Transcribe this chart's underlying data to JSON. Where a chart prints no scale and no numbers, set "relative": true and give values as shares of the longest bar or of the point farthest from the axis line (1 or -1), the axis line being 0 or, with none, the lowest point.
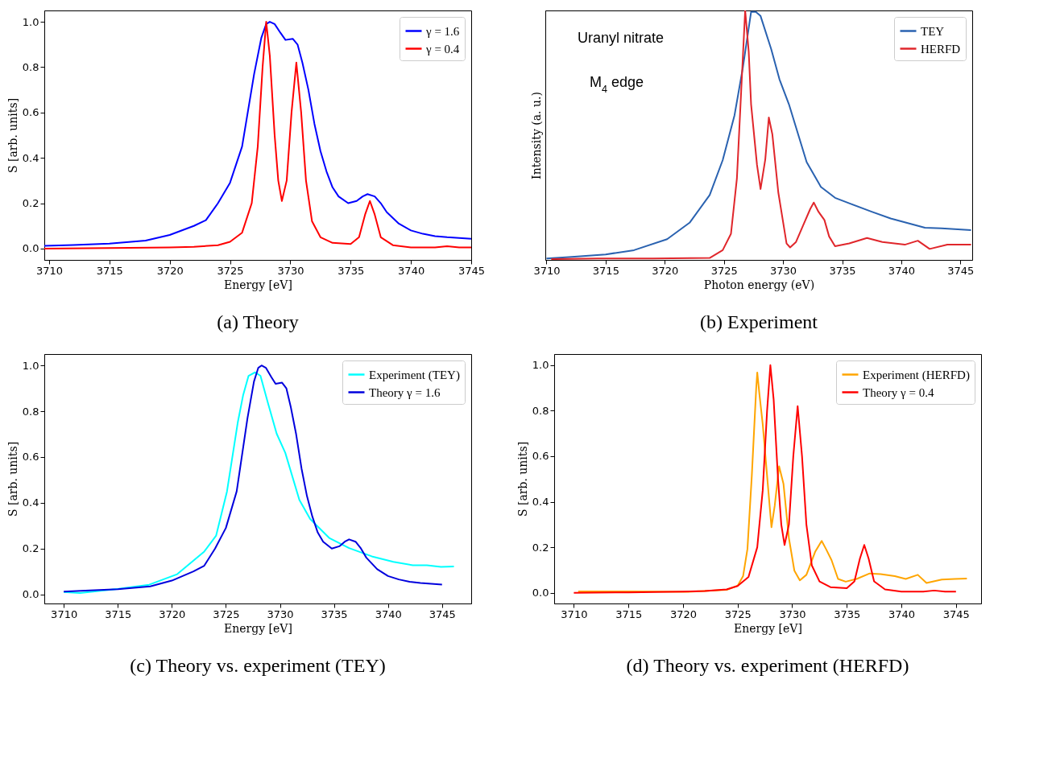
{
  "chart_data": [
    {
      "type": "line",
      "title": "(a) Theory",
      "xlabel": "Energy [eV]",
      "ylabel": "S [arb. units]",
      "xlim": [
        3709.6,
        3745
      ],
      "ylim": [
        -0.05,
        1.05
      ],
      "xticks": [
        3710,
        3715,
        3720,
        3725,
        3730,
        3735,
        3740,
        3745
      ],
      "yticks": [
        {
          "value": 0,
          "label": "0.0"
        },
        {
          "value": 0.2,
          "label": "0.2"
        },
        {
          "value": 0.4,
          "label": "0.4"
        },
        {
          "value": 0.6,
          "label": "0.6"
        },
        {
          "value": 0.8,
          "label": "0.8"
        },
        {
          "value": 1,
          "label": "1.0"
        }
      ],
      "legend": "top right",
      "series": [
        {
          "name": "γ = 1.6",
          "color": "#0000ff",
          "x": [
            3709.6,
            3712,
            3715,
            3718,
            3720,
            3722,
            3723,
            3724,
            3725,
            3726,
            3727,
            3727.6,
            3728,
            3728.3,
            3728.7,
            3729.2,
            3729.6,
            3730.2,
            3730.6,
            3731,
            3731.5,
            3732,
            3732.5,
            3733,
            3733.5,
            3734,
            3734.8,
            3735.5,
            3736,
            3736.4,
            3737,
            3737.5,
            3738,
            3739,
            3740,
            3741,
            3742,
            3743,
            3745
          ],
          "values": [
            0.012,
            0.016,
            0.022,
            0.035,
            0.06,
            0.1,
            0.125,
            0.2,
            0.29,
            0.45,
            0.77,
            0.93,
            0.99,
            1.0,
            0.99,
            0.95,
            0.92,
            0.925,
            0.9,
            0.82,
            0.7,
            0.55,
            0.43,
            0.34,
            0.27,
            0.23,
            0.2,
            0.21,
            0.23,
            0.24,
            0.23,
            0.2,
            0.16,
            0.11,
            0.08,
            0.065,
            0.055,
            0.05,
            0.043
          ]
        },
        {
          "name": "γ = 0.4",
          "color": "#ff0000",
          "x": [
            3709.6,
            3715,
            3720,
            3722,
            3724,
            3725,
            3726,
            3726.8,
            3727.3,
            3727.7,
            3728,
            3728.3,
            3728.7,
            3729,
            3729.3,
            3729.7,
            3730.1,
            3730.5,
            3730.9,
            3731.3,
            3731.8,
            3732.5,
            3733.5,
            3735,
            3735.7,
            3736.2,
            3736.6,
            3737,
            3737.5,
            3738.5,
            3740,
            3742,
            3743,
            3744,
            3745
          ],
          "values": [
            0,
            0.002,
            0.005,
            0.008,
            0.015,
            0.03,
            0.07,
            0.2,
            0.45,
            0.8,
            1.0,
            0.85,
            0.5,
            0.3,
            0.21,
            0.3,
            0.6,
            0.82,
            0.6,
            0.3,
            0.12,
            0.05,
            0.025,
            0.02,
            0.05,
            0.15,
            0.21,
            0.15,
            0.05,
            0.015,
            0.005,
            0.005,
            0.01,
            0.005,
            0.005
          ]
        }
      ]
    },
    {
      "type": "line",
      "title": "(b) Experiment",
      "xlabel": "Photon energy (eV)",
      "ylabel": "Intensity (a. u.)",
      "relative": true,
      "xlim": [
        3709.9,
        3746
      ],
      "xticks": [
        3710,
        3715,
        3720,
        3725,
        3730,
        3735,
        3740,
        3745
      ],
      "legend": "top right",
      "annotations": [
        "Uranyl nitrate",
        "M$_{4}$ edge"
      ],
      "series": [
        {
          "name": "TEY",
          "color": "#2a62b0",
          "x": [
            3710,
            3711.9,
            3715,
            3717.4,
            3720.2,
            3722.1,
            3723.8,
            3724.9,
            3725.9,
            3726.6,
            3727.3,
            3727.7,
            3728.1,
            3729,
            3729.7,
            3730.5,
            3732,
            3733.2,
            3734.4,
            3735.6,
            3737.5,
            3739.1,
            3742,
            3743.4,
            3745.9
          ],
          "values": [
            0.006,
            0.011,
            0.022,
            0.039,
            0.083,
            0.149,
            0.26,
            0.4,
            0.58,
            0.77,
            0.994,
            0.994,
            0.978,
            0.845,
            0.724,
            0.624,
            0.392,
            0.293,
            0.249,
            0.227,
            0.193,
            0.166,
            0.129,
            0.127,
            0.119
          ]
        },
        {
          "name": "HERFD",
          "color": "#e0262b",
          "x": [
            3710.4,
            3714.3,
            3719,
            3723.8,
            3724.9,
            3725.6,
            3726.1,
            3726.5,
            3726.8,
            3727.1,
            3727.3,
            3727.8,
            3728.1,
            3728.5,
            3728.8,
            3729.1,
            3729.6,
            3730.3,
            3730.6,
            3731.1,
            3731.7,
            3732.3,
            3732.6,
            3733,
            3733.5,
            3733.9,
            3734.4,
            3735.6,
            3737.1,
            3738.4,
            3740.3,
            3741.4,
            3742.4,
            3743.9,
            3745.9
          ],
          "values": [
            0.003,
            0.006,
            0.006,
            0.008,
            0.039,
            0.105,
            0.326,
            0.713,
            1.0,
            0.834,
            0.624,
            0.381,
            0.284,
            0.403,
            0.571,
            0.503,
            0.271,
            0.066,
            0.05,
            0.072,
            0.138,
            0.204,
            0.23,
            0.193,
            0.16,
            0.094,
            0.055,
            0.066,
            0.088,
            0.072,
            0.061,
            0.077,
            0.044,
            0.061,
            0.061
          ]
        }
      ]
    },
    {
      "type": "line",
      "title": "(c) Theory vs. experiment (TEY)",
      "xlabel": "Energy [eV]",
      "ylabel": "S [arb. units]",
      "xlim": [
        3708.2,
        3747.7
      ],
      "ylim": [
        -0.04,
        1.05
      ],
      "xticks": [
        3710,
        3715,
        3720,
        3725,
        3730,
        3735,
        3740,
        3745
      ],
      "yticks": [
        {
          "value": 0,
          "label": "0.0"
        },
        {
          "value": 0.2,
          "label": "0.2"
        },
        {
          "value": 0.4,
          "label": "0.4"
        },
        {
          "value": 0.6,
          "label": "0.6"
        },
        {
          "value": 0.8,
          "label": "0.8"
        },
        {
          "value": 1,
          "label": "1.0"
        }
      ],
      "legend": "top right",
      "series": [
        {
          "name": "Experiment (TEY)",
          "color": "#00ffff",
          "x": [
            3710,
            3711.5,
            3715.1,
            3717.9,
            3720.5,
            3723,
            3724.1,
            3725.1,
            3726.1,
            3726.6,
            3727.1,
            3727.7,
            3728.2,
            3728.9,
            3729.7,
            3730.5,
            3731.8,
            3732.8,
            3734.6,
            3736.4,
            3738.5,
            3740.5,
            3742.3,
            3743.6,
            3744.9,
            3746.1
          ],
          "values": [
            0.01,
            0.006,
            0.024,
            0.042,
            0.088,
            0.187,
            0.257,
            0.449,
            0.751,
            0.871,
            0.955,
            0.97,
            0.955,
            0.835,
            0.702,
            0.618,
            0.413,
            0.329,
            0.245,
            0.202,
            0.166,
            0.142,
            0.127,
            0.127,
            0.12,
            0.122
          ]
        },
        {
          "name": "Theory γ = 1.6",
          "color": "#0000dd",
          "x": [
            3710,
            3712,
            3715,
            3718,
            3720,
            3722,
            3723,
            3724,
            3725,
            3726,
            3727,
            3727.6,
            3728,
            3728.3,
            3728.7,
            3729.2,
            3729.6,
            3730.2,
            3730.6,
            3731,
            3731.5,
            3732,
            3732.5,
            3733,
            3733.5,
            3734,
            3734.8,
            3735.5,
            3736,
            3736.4,
            3737,
            3737.5,
            3738,
            3739,
            3740,
            3741,
            3742,
            3743,
            3745
          ],
          "values": [
            0.012,
            0.016,
            0.022,
            0.035,
            0.06,
            0.1,
            0.125,
            0.2,
            0.29,
            0.45,
            0.77,
            0.93,
            0.99,
            1.0,
            0.99,
            0.95,
            0.92,
            0.925,
            0.9,
            0.82,
            0.7,
            0.55,
            0.43,
            0.34,
            0.27,
            0.23,
            0.2,
            0.21,
            0.23,
            0.24,
            0.23,
            0.2,
            0.16,
            0.11,
            0.08,
            0.065,
            0.055,
            0.05,
            0.043
          ]
        }
      ]
    },
    {
      "type": "line",
      "title": "(d) Theory vs. experiment (HERFD)",
      "xlabel": "Energy [eV]",
      "ylabel": "S [arb. units]",
      "xlim": [
        3708.2,
        3747.3
      ],
      "ylim": [
        -0.047,
        1.049
      ],
      "xticks": [
        3710,
        3715,
        3720,
        3725,
        3730,
        3735,
        3740,
        3745
      ],
      "yticks": [
        {
          "value": 0,
          "label": "0.0"
        },
        {
          "value": 0.2,
          "label": "0.2"
        },
        {
          "value": 0.4,
          "label": "0.4"
        },
        {
          "value": 0.6,
          "label": "0.6"
        },
        {
          "value": 0.8,
          "label": "0.8"
        },
        {
          "value": 1,
          "label": "1.0"
        }
      ],
      "legend": "top right",
      "series": [
        {
          "name": "Experiment (HERFD)",
          "color": "#ffa500",
          "x": [
            3710.4,
            3715.4,
            3720.5,
            3724,
            3725,
            3725.5,
            3725.9,
            3726.3,
            3726.7,
            3726.8,
            3727,
            3727.3,
            3727.7,
            3728.1,
            3728.4,
            3728.8,
            3729.2,
            3729.7,
            3730.2,
            3730.7,
            3731.3,
            3732.1,
            3732.7,
            3733.1,
            3733.6,
            3734.2,
            3734.9,
            3735.9,
            3737.1,
            3738.1,
            3739.4,
            3740.4,
            3741.5,
            3742.3,
            3743.7,
            3744.9,
            3746
          ],
          "values": [
            0.006,
            0.006,
            0.004,
            0.013,
            0.031,
            0.073,
            0.192,
            0.514,
            0.896,
            0.968,
            0.872,
            0.741,
            0.514,
            0.288,
            0.383,
            0.556,
            0.479,
            0.24,
            0.097,
            0.055,
            0.079,
            0.18,
            0.228,
            0.192,
            0.144,
            0.061,
            0.049,
            0.061,
            0.085,
            0.082,
            0.073,
            0.061,
            0.079,
            0.043,
            0.058,
            0.061,
            0.063
          ]
        },
        {
          "name": "Theory γ = 0.4",
          "color": "#ff0000",
          "x": [
            3710,
            3715,
            3720,
            3722,
            3724,
            3725,
            3726,
            3726.8,
            3727.3,
            3727.7,
            3728,
            3728.3,
            3728.7,
            3729,
            3729.3,
            3729.7,
            3730.1,
            3730.5,
            3730.9,
            3731.3,
            3731.8,
            3732.5,
            3733.5,
            3735,
            3735.7,
            3736.2,
            3736.6,
            3737,
            3737.5,
            3738.5,
            3740,
            3742,
            3743,
            3744,
            3745
          ],
          "values": [
            0,
            0.002,
            0.005,
            0.008,
            0.015,
            0.03,
            0.07,
            0.2,
            0.45,
            0.8,
            1.0,
            0.85,
            0.5,
            0.3,
            0.21,
            0.3,
            0.6,
            0.82,
            0.6,
            0.3,
            0.12,
            0.05,
            0.025,
            0.02,
            0.05,
            0.15,
            0.21,
            0.15,
            0.05,
            0.015,
            0.005,
            0.005,
            0.01,
            0.005,
            0.005
          ]
        }
      ]
    }
  ]
}
